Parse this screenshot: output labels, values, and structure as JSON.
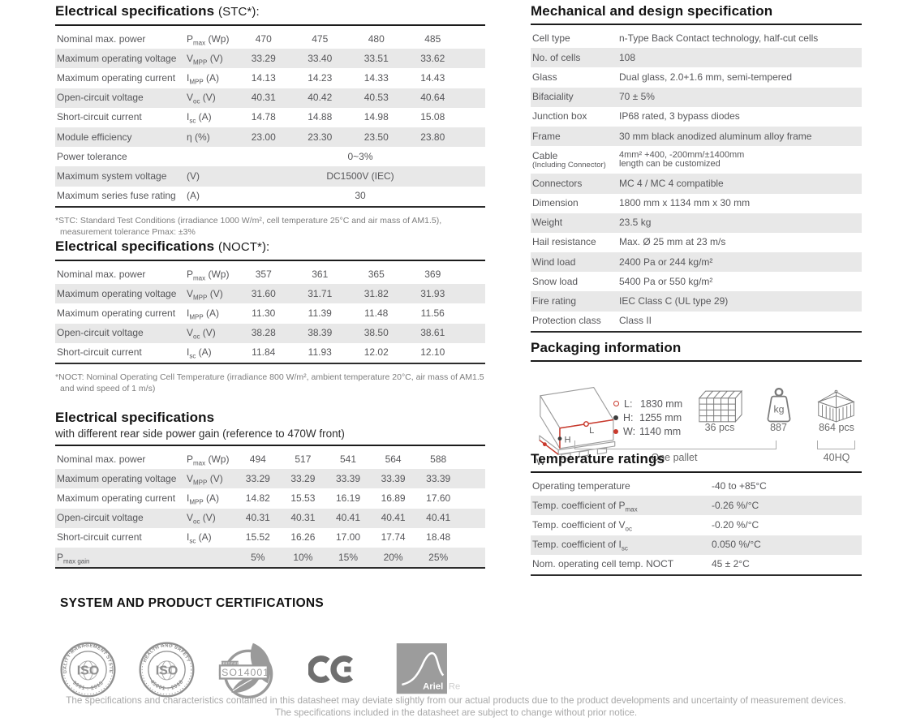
{
  "colors": {
    "accent_red": "#c9392c",
    "row_shade": "#e8e8e8",
    "text_gray": "#57575a",
    "heading": "#141414",
    "logo_gray": "#8f8f8f",
    "logo_gray2": "#9a9a9a",
    "icon_stroke": "#7a7a7a",
    "footer_gray": "#a8a8a8",
    "bracket": "#ababab"
  },
  "icons": {
    "pallet": "pallet-3d-icon",
    "stack": "panel-stack-icon",
    "weight": "kg-weight-icon",
    "container": "shipping-container-icon",
    "marker_l": "open-red-circle-marker",
    "marker_h": "black-dot-marker",
    "marker_w": "red-dot-marker"
  },
  "stc": {
    "title": "Electrical specifications",
    "title_suffix": "(STC*):",
    "value_cols": 4,
    "rows": [
      {
        "label": "Nominal max. power",
        "sym": {
          "b": "P",
          "s": "max",
          "u": "(Wp)"
        },
        "values": [
          "470",
          "475",
          "480",
          "485"
        ]
      },
      {
        "label": "Maximum operating voltage",
        "sym": {
          "b": "V",
          "s": "MPP",
          "u": "(V)"
        },
        "values": [
          "33.29",
          "33.40",
          "33.51",
          "33.62"
        ]
      },
      {
        "label": "Maximum operating current",
        "sym": {
          "b": "I",
          "s": "MPP",
          "u": "(A)"
        },
        "values": [
          "14.13",
          "14.23",
          "14.33",
          "14.43"
        ]
      },
      {
        "label": "Open-circuit voltage",
        "sym": {
          "b": "V",
          "s": "oc",
          "u": "(V)"
        },
        "values": [
          "40.31",
          "40.42",
          "40.53",
          "40.64"
        ]
      },
      {
        "label": "Short-circuit current",
        "sym": {
          "b": "I",
          "s": "sc",
          "u": "(A)"
        },
        "values": [
          "14.78",
          "14.88",
          "14.98",
          "15.08"
        ]
      },
      {
        "label": "Module efficiency",
        "sym": {
          "b": "η",
          "u": "(%)"
        },
        "values": [
          "23.00",
          "23.30",
          "23.50",
          "23.80"
        ]
      },
      {
        "label": "Power tolerance",
        "span": true,
        "values": [
          "0~3%"
        ]
      },
      {
        "label": "Maximum system voltage",
        "sym": {
          "u": "(V)"
        },
        "span": true,
        "values": [
          "DC1500V (IEC)"
        ]
      },
      {
        "label": "Maximum series fuse rating",
        "sym": {
          "u": "(A)"
        },
        "span": true,
        "values": [
          "30"
        ]
      }
    ],
    "footnote": "*STC: Standard Test Conditions (irradiance 1000 W/m², cell temperature 25°C and air mass of AM1.5), measurement tolerance Pmax: ±3%"
  },
  "noct": {
    "title": "Electrical specifications",
    "title_suffix": "(NOCT*):",
    "value_cols": 4,
    "rows": [
      {
        "label": "Nominal max. power",
        "sym": {
          "b": "P",
          "s": "max",
          "u": "(Wp)"
        },
        "values": [
          "357",
          "361",
          "365",
          "369"
        ]
      },
      {
        "label": "Maximum operating voltage",
        "sym": {
          "b": "V",
          "s": "MPP",
          "u": "(V)"
        },
        "values": [
          "31.60",
          "31.71",
          "31.82",
          "31.93"
        ]
      },
      {
        "label": "Maximum operating current",
        "sym": {
          "b": "I",
          "s": "MPP",
          "u": "(A)"
        },
        "values": [
          "11.30",
          "11.39",
          "11.48",
          "11.56"
        ]
      },
      {
        "label": "Open-circuit voltage",
        "sym": {
          "b": "V",
          "s": "oc",
          "u": "(V)"
        },
        "values": [
          "38.28",
          "38.39",
          "38.50",
          "38.61"
        ]
      },
      {
        "label": "Short-circuit current",
        "sym": {
          "b": "I",
          "s": "sc",
          "u": "(A)"
        },
        "values": [
          "11.84",
          "11.93",
          "12.02",
          "12.10"
        ]
      }
    ],
    "footnote": "*NOCT: Nominal Operating Cell Temperature (irradiance 800 W/m², ambient temperature 20°C, air mass of AM1.5 and wind speed of 1 m/s)"
  },
  "gain": {
    "title": "Electrical specifications",
    "subtitle": "with different rear side power gain (reference to 470W front)",
    "value_cols": 5,
    "rows": [
      {
        "label": "Nominal max. power",
        "sym": {
          "b": "P",
          "s": "max",
          "u": "(Wp)"
        },
        "values": [
          "494",
          "517",
          "541",
          "564",
          "588"
        ]
      },
      {
        "label": "Maximum operating voltage",
        "sym": {
          "b": "V",
          "s": "MPP",
          "u": "(V)"
        },
        "values": [
          "33.29",
          "33.29",
          "33.39",
          "33.39",
          "33.39"
        ]
      },
      {
        "label": "Maximum operating current",
        "sym": {
          "b": "I",
          "s": "MPP",
          "u": "(A)"
        },
        "values": [
          "14.82",
          "15.53",
          "16.19",
          "16.89",
          "17.60"
        ]
      },
      {
        "label": "Open-circuit voltage",
        "sym": {
          "b": "V",
          "s": "oc",
          "u": "(V)"
        },
        "values": [
          "40.31",
          "40.31",
          "40.41",
          "40.41",
          "40.41"
        ]
      },
      {
        "label": "Short-circuit current",
        "sym": {
          "b": "I",
          "s": "sc",
          "u": "(A)"
        },
        "values": [
          "15.52",
          "16.26",
          "17.00",
          "17.74",
          "18.48"
        ]
      },
      {
        "label_sym": {
          "b": "P",
          "s": "max gain"
        },
        "values": [
          "5%",
          "10%",
          "15%",
          "20%",
          "25%"
        ]
      }
    ]
  },
  "mech": {
    "title": "Mechanical and design specification",
    "rows": [
      {
        "label": "Cell type",
        "lines": [
          "n-Type Back Contact technology, half-cut cells"
        ]
      },
      {
        "label": "No. of cells",
        "lines": [
          "108"
        ]
      },
      {
        "label": "Glass",
        "lines": [
          "Dual glass, 2.0+1.6 mm, semi-tempered"
        ]
      },
      {
        "label": "Bifaciality",
        "lines": [
          "70 ± 5%"
        ]
      },
      {
        "label": "Junction box",
        "lines": [
          "IP68 rated, 3 bypass diodes"
        ]
      },
      {
        "label": "Frame",
        "lines": [
          "30 mm black anodized aluminum alloy frame"
        ]
      },
      {
        "label": "Cable",
        "label_sub": "(Including Connector)",
        "tight": true,
        "lines": [
          "4mm² +400, -200mm/±1400mm",
          "length can be customized"
        ]
      },
      {
        "label": "Connectors",
        "lines": [
          "MC 4 / MC 4 compatible"
        ]
      },
      {
        "label": "Dimension",
        "lines": [
          "1800 mm x 1134 mm x 30 mm"
        ]
      },
      {
        "label": "Weight",
        "lines": [
          "23.5 kg"
        ]
      },
      {
        "label": "Hail resistance",
        "lines": [
          "Max. Ø 25 mm at 23 m/s"
        ]
      },
      {
        "label": "Wind load",
        "lines": [
          "2400 Pa or 244 kg/m²"
        ]
      },
      {
        "label": "Snow load",
        "lines": [
          "5400 Pa or 550 kg/m²"
        ]
      },
      {
        "label": "Fire rating",
        "lines": [
          "IEC Class C (UL type 29)"
        ]
      },
      {
        "label": "Protection class",
        "lines": [
          "Class II"
        ]
      }
    ]
  },
  "packaging": {
    "title": "Packaging information",
    "dim_l": "L",
    "dim_h": "H",
    "dim_w": "W",
    "legend": [
      {
        "key": "L:",
        "val": "1830 mm"
      },
      {
        "key": "H:",
        "val": "1255 mm"
      },
      {
        "key": "W:",
        "val": "1140 mm"
      }
    ],
    "pallet_count": "36 pcs",
    "pallet_weight": "887",
    "container_count": "864 pcs",
    "group_pallet": "One pallet",
    "group_container": "40HQ"
  },
  "temp": {
    "title": "Temperature ratings",
    "rows": [
      {
        "pre": "Operating temperature",
        "value": "-40 to +85°C"
      },
      {
        "pre": "Temp. coefficient of ",
        "b": "P",
        "s": "max",
        "value": "-0.26 %/°C"
      },
      {
        "pre": "Temp. coefficient of ",
        "b": "V",
        "s": "oc",
        "value": "-0.20 %/°C"
      },
      {
        "pre": "Temp. coefficient of ",
        "b": "I",
        "s": "sc",
        "value": "0.050 %/°C"
      },
      {
        "pre": "Nom. operating cell temp. NOCT",
        "value": "45 ± 2°C"
      }
    ]
  },
  "cert": {
    "title": "SYSTEM AND PRODUCT CERTIFICATIONS",
    "iso9001": {
      "top": "QUALITY MANAGEMENT SYSTEM",
      "center": "ISO",
      "bottom": "9001 : 2015"
    },
    "iso45001": {
      "top": "HEALTH AND SAFETY",
      "center": "ISO",
      "bottom": "45001 : 2018"
    },
    "iso14001": {
      "small": "CERTIFIED",
      "label": "ISO14001"
    },
    "ce_label": "CE",
    "ariel": {
      "name": "Ariel",
      "suffix": "Re"
    }
  },
  "footer": {
    "line1": "The specifications and characteristics contained in this datasheet may deviate slightly from our actual products due to the product developments and uncertainty of measurement devices.",
    "line2": "The specifications included in the datasheet are subject to change without prior notice."
  }
}
